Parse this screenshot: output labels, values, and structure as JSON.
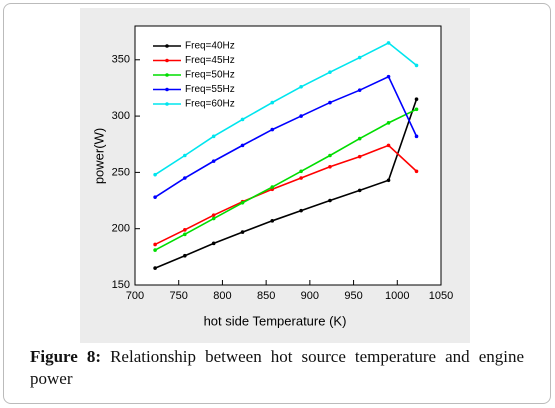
{
  "chart_data": {
    "type": "line",
    "xlabel": "hot side Temperature (K)",
    "ylabel": "power(W)",
    "x": [
      723,
      757,
      790,
      823,
      857,
      890,
      923,
      957,
      990,
      1022
    ],
    "series": [
      {
        "name": "Freq=40Hz",
        "color": "#000000",
        "values": [
          165,
          176,
          187,
          197,
          207,
          216,
          225,
          234,
          243,
          315
        ]
      },
      {
        "name": "Freq=45Hz",
        "color": "#ff0000",
        "values": [
          186,
          199,
          212,
          224,
          235,
          245,
          255,
          264,
          274,
          251
        ]
      },
      {
        "name": "Freq=50Hz",
        "color": "#00dd00",
        "values": [
          181,
          195,
          209,
          223,
          237,
          251,
          265,
          280,
          294,
          306
        ]
      },
      {
        "name": "Freq=55Hz",
        "color": "#0000ff",
        "values": [
          228,
          245,
          260,
          274,
          288,
          300,
          312,
          323,
          335,
          282
        ]
      },
      {
        "name": "Freq=60Hz",
        "color": "#00e5ee",
        "values": [
          248,
          265,
          282,
          297,
          312,
          326,
          339,
          352,
          365,
          345
        ]
      }
    ],
    "xlim": [
      700,
      1050
    ],
    "xticks": [
      700,
      750,
      800,
      850,
      900,
      950,
      1000,
      1050
    ],
    "ylim": [
      150,
      380
    ],
    "yticks": [
      150,
      200,
      250,
      300,
      350
    ],
    "legend": "upper left",
    "grid": false
  },
  "figure_caption": {
    "label": "Figure 8:",
    "text": "Relationship between hot source temperature and engine power"
  }
}
